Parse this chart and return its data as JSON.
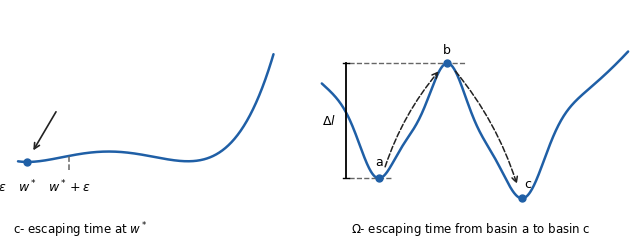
{
  "background_color": "#ffffff",
  "curve_color": "#1f5fa6",
  "dot_color": "#1f5fa6",
  "dashed_color": "#666666",
  "arrow_color": "#222222",
  "label_left_caption": "c- escaping time at $w^*$",
  "label_right_caption": "$\\Omega$- escaping time from basin a to basin c",
  "label_w_star_minus": "$w^* - \\epsilon$",
  "label_w_star": "$w^*$",
  "label_w_star_plus": "$w^* + \\epsilon$",
  "label_a": "a",
  "label_b": "b",
  "label_c": "c",
  "label_delta": "$\\Delta l$",
  "caption_fontsize": 8.5,
  "label_fontsize": 9
}
